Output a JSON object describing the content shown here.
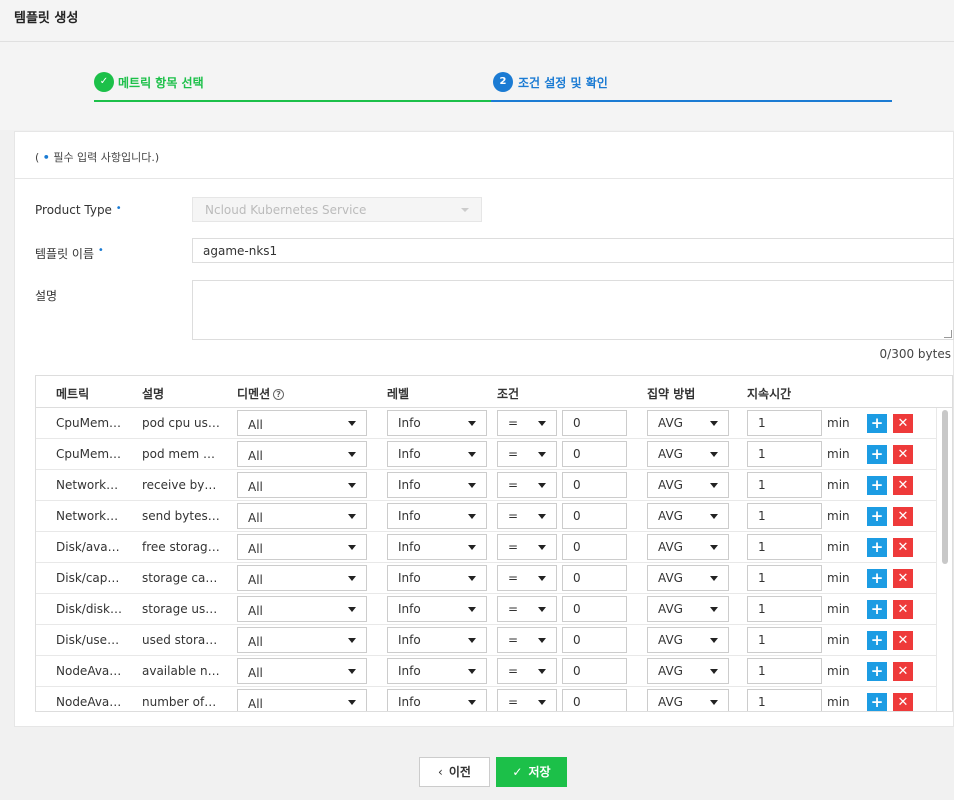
{
  "header": {
    "title": "템플릿 생성"
  },
  "steps": [
    {
      "number": "✓",
      "label": "메트릭 항목 선택",
      "state": "done"
    },
    {
      "number": "2",
      "label": "조건 설정 및 확인",
      "state": "active"
    }
  ],
  "form": {
    "required_note_prefix": "( ",
    "required_note_dot": "•",
    "required_note_text": " 필수 입력 사항입니다.)",
    "product_type_label": "Product Type",
    "product_type_value": "Ncloud Kubernetes Service",
    "template_name_label": "템플릿 이름",
    "template_name_value": "agame-nks1",
    "description_label": "설명",
    "description_value": "",
    "description_counter": "0/300 bytes",
    "required_marker": "•"
  },
  "table": {
    "headers": {
      "metric": "메트릭",
      "description": "설명",
      "dimension": "디멘션",
      "level": "레벨",
      "condition": "조건",
      "aggregation": "집약 방법",
      "duration": "지속시간"
    },
    "help_icon": "?",
    "rows": [
      {
        "metric": "CpuMem/r…",
        "description": "pod cpu usa…",
        "dimension": "All",
        "level": "Info",
        "operator": "=",
        "value": "0",
        "aggregation": "AVG",
        "duration": "1",
        "unit": "min"
      },
      {
        "metric": "CpuMem/r…",
        "description": "pod mem us…",
        "dimension": "All",
        "level": "Info",
        "operator": "=",
        "value": "0",
        "aggregation": "AVG",
        "duration": "1",
        "unit": "min"
      },
      {
        "metric": "Network/n…",
        "description": "receive byte…",
        "dimension": "All",
        "level": "Info",
        "operator": "=",
        "value": "0",
        "aggregation": "AVG",
        "duration": "1",
        "unit": "min"
      },
      {
        "metric": "Network/n…",
        "description": "send bytes p…",
        "dimension": "All",
        "level": "Info",
        "operator": "=",
        "value": "0",
        "aggregation": "AVG",
        "duration": "1",
        "unit": "min"
      },
      {
        "metric": "Disk/avail…",
        "description": "free storage …",
        "dimension": "All",
        "level": "Info",
        "operator": "=",
        "value": "0",
        "aggregation": "AVG",
        "duration": "1",
        "unit": "min"
      },
      {
        "metric": "Disk/capa…",
        "description": "storage cap…",
        "dimension": "All",
        "level": "Info",
        "operator": "=",
        "value": "0",
        "aggregation": "AVG",
        "duration": "1",
        "unit": "min"
      },
      {
        "metric": "Disk/disk_…",
        "description": "storage use…",
        "dimension": "All",
        "level": "Info",
        "operator": "=",
        "value": "0",
        "aggregation": "AVG",
        "duration": "1",
        "unit": "min"
      },
      {
        "metric": "Disk/used…",
        "description": "used storag…",
        "dimension": "All",
        "level": "Info",
        "operator": "=",
        "value": "0",
        "aggregation": "AVG",
        "duration": "1",
        "unit": "min"
      },
      {
        "metric": "NodeAvail…",
        "description": "available no…",
        "dimension": "All",
        "level": "Info",
        "operator": "=",
        "value": "0",
        "aggregation": "AVG",
        "duration": "1",
        "unit": "min"
      },
      {
        "metric": "NodeAvail…",
        "description": "number of n…",
        "dimension": "All",
        "level": "Info",
        "operator": "=",
        "value": "0",
        "aggregation": "AVG",
        "duration": "1",
        "unit": "min"
      }
    ],
    "add_icon": "+",
    "delete_icon": "✕"
  },
  "footer": {
    "prev_icon": "‹",
    "prev_label": "이전",
    "save_icon": "✓",
    "save_label": "저장"
  },
  "colors": {
    "step_done": "#1cc049",
    "step_active": "#1b7bd3",
    "add_button": "#1c9ce3",
    "delete_button": "#ee3a3a",
    "save_button": "#1cc049"
  }
}
